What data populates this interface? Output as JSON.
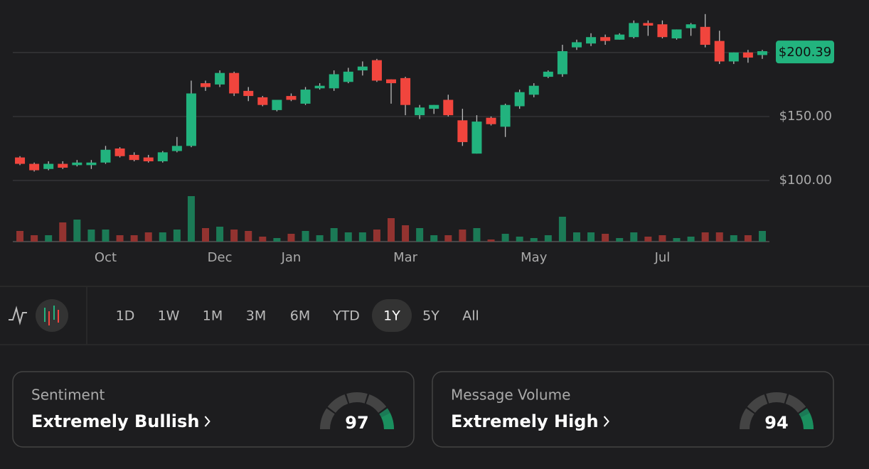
{
  "chart_data": {
    "type": "candlestick",
    "categories": [
      null,
      null,
      null,
      null,
      null,
      null,
      "Oct",
      null,
      null,
      null,
      null,
      null,
      null,
      null,
      "Dec",
      null,
      null,
      null,
      null,
      "Jan",
      null,
      null,
      null,
      null,
      null,
      null,
      null,
      "Mar",
      null,
      null,
      null,
      null,
      null,
      null,
      null,
      null,
      "May",
      null,
      null,
      null,
      null,
      null,
      null,
      null,
      null,
      "Jul",
      null,
      null,
      null,
      null,
      null,
      null,
      null
    ],
    "open": [
      118,
      113,
      109,
      113,
      112,
      112,
      114,
      125,
      120,
      118,
      115,
      123,
      127,
      176,
      175,
      184,
      170,
      165,
      155,
      166,
      160,
      172,
      172,
      177,
      186,
      194,
      179,
      180,
      151,
      156,
      163,
      147,
      121,
      149,
      142,
      158,
      167,
      181,
      183,
      204,
      207,
      212,
      210,
      212,
      223,
      222,
      211,
      219,
      220,
      209,
      193,
      200,
      198
    ],
    "high": [
      119,
      114,
      115,
      115,
      116,
      116,
      127,
      126,
      122,
      120,
      123,
      134,
      178,
      178,
      186,
      185,
      173,
      166,
      163,
      168,
      173,
      176,
      186,
      188,
      193,
      195,
      179,
      181,
      159,
      159,
      167,
      156,
      151,
      150,
      160,
      171,
      176,
      186,
      206,
      210,
      215,
      214,
      215,
      225,
      225,
      225,
      218,
      223,
      230,
      217,
      200,
      202,
      202
    ],
    "low": [
      112,
      107,
      108,
      109,
      111,
      109,
      113,
      118,
      115,
      114,
      114,
      122,
      126,
      170,
      173,
      166,
      162,
      158,
      154,
      162,
      159,
      171,
      170,
      176,
      182,
      177,
      160,
      151,
      148,
      152,
      150,
      127,
      121,
      143,
      134,
      156,
      165,
      180,
      181,
      202,
      205,
      206,
      210,
      211,
      213,
      211,
      210,
      213,
      204,
      191,
      191,
      192,
      195
    ],
    "close": [
      113,
      108,
      113,
      110,
      114,
      114,
      124,
      119,
      116,
      115,
      122,
      127,
      168,
      173,
      184,
      168,
      166,
      159,
      163,
      163,
      171,
      174,
      183,
      185,
      189,
      178,
      176,
      159,
      157,
      159,
      151,
      130,
      146,
      144,
      159,
      169,
      174,
      185,
      201,
      208,
      212,
      209,
      214,
      223,
      221,
      212,
      218,
      222,
      206,
      193,
      200,
      196,
      201
    ],
    "volume": [
      15,
      9,
      9,
      27,
      31,
      17,
      17,
      9,
      9,
      13,
      13,
      17,
      64,
      19,
      21,
      17,
      15,
      7,
      5,
      11,
      15,
      9,
      19,
      13,
      13,
      17,
      33,
      23,
      19,
      9,
      9,
      17,
      19,
      3,
      11,
      7,
      5,
      9,
      35,
      13,
      13,
      11,
      5,
      13,
      7,
      9,
      5,
      7,
      13,
      13,
      9,
      9,
      15
    ],
    "ylim": [
      90,
      231
    ],
    "volume_lim": [
      0,
      70
    ],
    "yticks": [
      {
        "value": 100,
        "label": "$100.00"
      },
      {
        "value": 150,
        "label": "$150.00"
      },
      {
        "value": 200
      }
    ],
    "grid": true,
    "up_color": "#22b37e",
    "down_color": "#f1453d",
    "up_volume_color": "#1b7a56",
    "down_volume_color": "#933330",
    "last_price": {
      "value": 200.39,
      "label": "$200.39"
    }
  },
  "toolbar": {
    "ranges": [
      "1D",
      "1W",
      "1M",
      "3M",
      "6M",
      "YTD",
      "1Y",
      "5Y",
      "All"
    ],
    "selected": "1Y"
  },
  "cards": [
    {
      "label": "Sentiment",
      "value_text": "Extremely Bullish",
      "score": 97
    },
    {
      "label": "Message Volume",
      "value_text": "Extremely High",
      "score": 94
    }
  ]
}
